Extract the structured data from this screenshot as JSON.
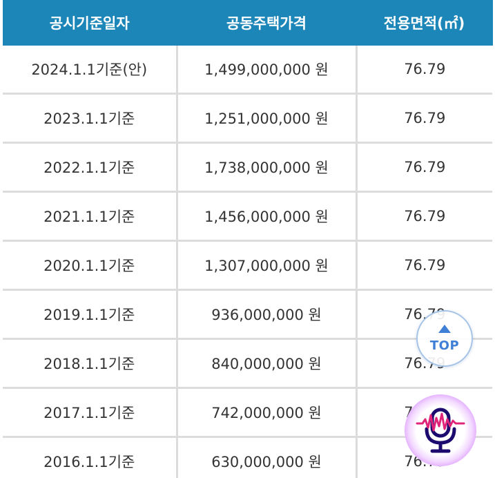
{
  "table": {
    "headers": [
      "공시기준일자",
      "공동주택가격",
      "전용면적(㎡)"
    ],
    "rows": [
      {
        "date": "2024.1.1기준(안)",
        "price": "1,499,000,000 원",
        "area": "76.79"
      },
      {
        "date": "2023.1.1기준",
        "price": "1,251,000,000 원",
        "area": "76.79"
      },
      {
        "date": "2022.1.1기준",
        "price": "1,738,000,000 원",
        "area": "76.79"
      },
      {
        "date": "2021.1.1기준",
        "price": "1,456,000,000 원",
        "area": "76.79"
      },
      {
        "date": "2020.1.1기준",
        "price": "1,307,000,000 원",
        "area": "76.79"
      },
      {
        "date": "2019.1.1기준",
        "price": "936,000,000 원",
        "area": "76.79"
      },
      {
        "date": "2018.1.1기준",
        "price": "840,000,000 원",
        "area": "76.79"
      },
      {
        "date": "2017.1.1기준",
        "price": "742,000,000 원",
        "area": "76.79"
      },
      {
        "date": "2016.1.1기준",
        "price": "630,000,000 원",
        "area": "76.79"
      }
    ]
  },
  "top_button": {
    "label": "TOP",
    "icon": "up-triangle-icon"
  },
  "voice_button": {
    "icon": "microphone-icon"
  },
  "colors": {
    "header_bg": "#1b86b7",
    "header_text": "#ffffff",
    "grid": "#dcdcdc",
    "top_accent": "#3f7fd6",
    "mic_accent": "#1d0a6e",
    "glow": "#d68cff"
  }
}
